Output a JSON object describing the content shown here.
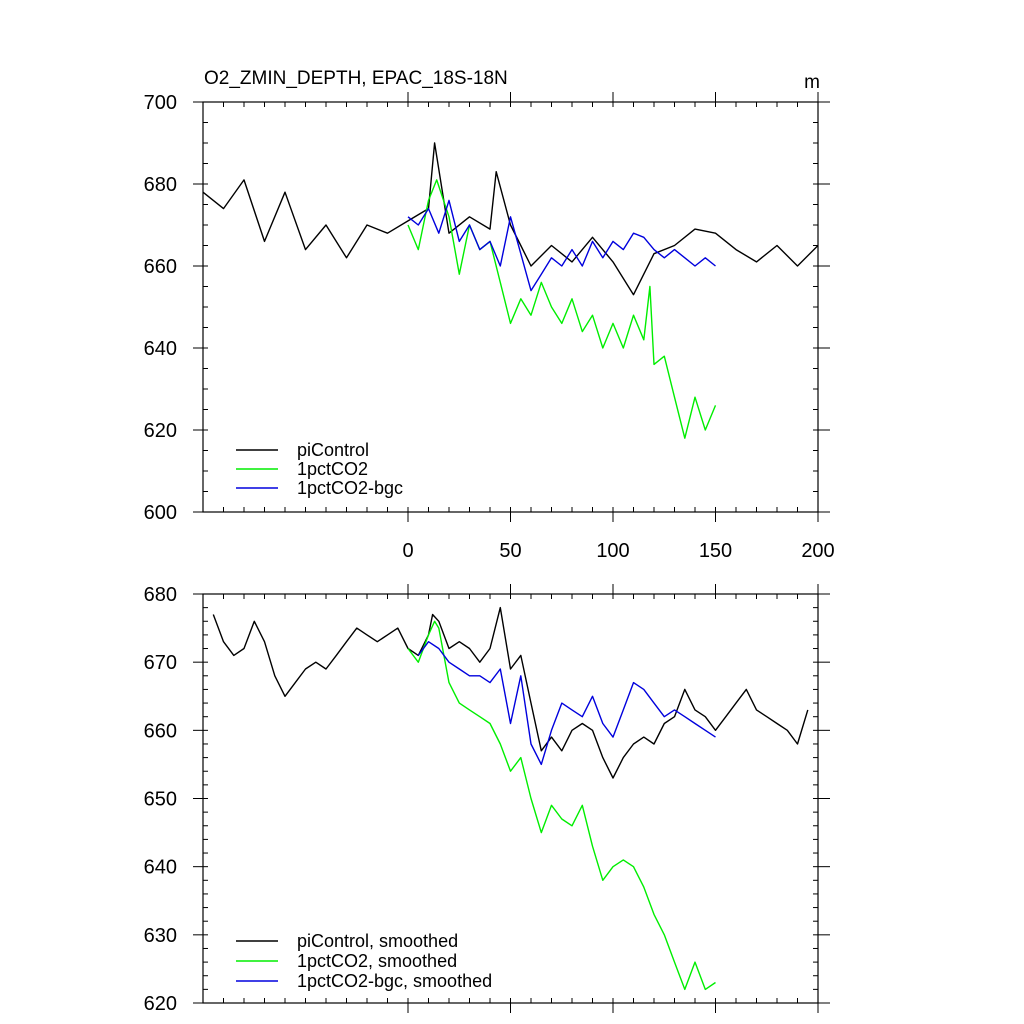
{
  "chart_data": [
    {
      "type": "line",
      "title": "O2_ZMIN_DEPTH, EPAC_18S-18N",
      "unit": "m",
      "xlim": [
        -100,
        200
      ],
      "ylim": [
        600,
        700
      ],
      "xticks": [
        0,
        50,
        100,
        150,
        200
      ],
      "xtick_labels": [
        "0",
        "50",
        "100",
        "150",
        "200"
      ],
      "yticks": [
        600,
        620,
        640,
        660,
        680,
        700
      ],
      "ytick_labels": [
        "600",
        "620",
        "640",
        "660",
        "680",
        "700"
      ],
      "legend_position": "bottom-left",
      "series": [
        {
          "name": "piControl",
          "color": "#000000",
          "x": [
            -100,
            -90,
            -80,
            -70,
            -60,
            -50,
            -40,
            -30,
            -20,
            -10,
            0,
            10,
            13,
            20,
            30,
            40,
            43,
            50,
            55,
            60,
            70,
            80,
            90,
            100,
            110,
            120,
            130,
            140,
            150,
            160,
            170,
            180,
            190,
            200
          ],
          "y": [
            678,
            674,
            681,
            666,
            678,
            664,
            670,
            662,
            670,
            668,
            671,
            674,
            690,
            668,
            672,
            669,
            683,
            670,
            665,
            660,
            665,
            661,
            667,
            661,
            653,
            663,
            665,
            669,
            668,
            664,
            661,
            665,
            660,
            665
          ]
        },
        {
          "name": "1pctCO2",
          "color": "#00ee00",
          "x": [
            0,
            5,
            10,
            14,
            20,
            25,
            30,
            35,
            40,
            45,
            50,
            55,
            60,
            65,
            70,
            75,
            80,
            85,
            90,
            95,
            100,
            105,
            110,
            115,
            118,
            120,
            125,
            130,
            135,
            140,
            145,
            150
          ],
          "y": [
            670,
            664,
            676,
            681,
            672,
            658,
            670,
            664,
            666,
            656,
            646,
            652,
            648,
            656,
            650,
            646,
            652,
            644,
            648,
            640,
            646,
            640,
            648,
            642,
            655,
            636,
            638,
            628,
            618,
            628,
            620,
            626
          ]
        },
        {
          "name": "1pctCO2-bgc",
          "color": "#0000dd",
          "x": [
            0,
            5,
            10,
            15,
            20,
            25,
            30,
            35,
            40,
            45,
            50,
            55,
            60,
            65,
            70,
            75,
            80,
            85,
            90,
            95,
            100,
            105,
            110,
            115,
            120,
            125,
            130,
            135,
            140,
            145,
            150
          ],
          "y": [
            672,
            670,
            674,
            668,
            676,
            666,
            670,
            664,
            666,
            660,
            672,
            663,
            654,
            658,
            662,
            660,
            664,
            660,
            666,
            662,
            666,
            664,
            668,
            667,
            664,
            662,
            664,
            662,
            660,
            662,
            660
          ]
        }
      ]
    },
    {
      "type": "line",
      "title": "",
      "xlim": [
        -100,
        200
      ],
      "ylim": [
        620,
        680
      ],
      "xticks": [
        0,
        50,
        100,
        150,
        200
      ],
      "xtick_labels": [
        "",
        "",
        "",
        "",
        ""
      ],
      "yticks": [
        620,
        630,
        640,
        650,
        660,
        670,
        680
      ],
      "ytick_labels": [
        "620",
        "630",
        "640",
        "650",
        "660",
        "670",
        "680"
      ],
      "legend_position": "bottom-left",
      "series": [
        {
          "name": "piControl, smoothed",
          "color": "#000000",
          "x": [
            -95,
            -90,
            -85,
            -80,
            -75,
            -70,
            -65,
            -60,
            -55,
            -50,
            -45,
            -40,
            -35,
            -30,
            -25,
            -20,
            -15,
            -10,
            -5,
            0,
            5,
            10,
            12,
            15,
            20,
            25,
            30,
            35,
            40,
            45,
            50,
            55,
            60,
            65,
            70,
            75,
            80,
            85,
            90,
            95,
            100,
            105,
            110,
            115,
            120,
            125,
            130,
            135,
            140,
            145,
            150,
            155,
            160,
            165,
            170,
            175,
            180,
            185,
            190,
            195
          ],
          "y": [
            677,
            673,
            671,
            672,
            676,
            673,
            668,
            665,
            667,
            669,
            670,
            669,
            671,
            673,
            675,
            674,
            673,
            674,
            675,
            672,
            671,
            674,
            677,
            676,
            672,
            673,
            672,
            670,
            672,
            678,
            669,
            671,
            664,
            657,
            659,
            657,
            660,
            661,
            660,
            656,
            653,
            656,
            658,
            659,
            658,
            661,
            662,
            666,
            663,
            662,
            660,
            662,
            664,
            666,
            663,
            662,
            661,
            660,
            658,
            663
          ]
        },
        {
          "name": "1pctCO2, smoothed",
          "color": "#00ee00",
          "x": [
            0,
            5,
            10,
            13,
            15,
            20,
            25,
            30,
            35,
            40,
            45,
            50,
            55,
            60,
            65,
            70,
            75,
            80,
            85,
            90,
            95,
            100,
            105,
            110,
            115,
            120,
            125,
            130,
            135,
            140,
            145,
            150
          ],
          "y": [
            672,
            670,
            674,
            676,
            675,
            667,
            664,
            663,
            662,
            661,
            658,
            654,
            656,
            650,
            645,
            649,
            647,
            646,
            649,
            643,
            638,
            640,
            641,
            640,
            637,
            633,
            630,
            626,
            622,
            626,
            622,
            623
          ]
        },
        {
          "name": "1pctCO2-bgc, smoothed",
          "color": "#0000dd",
          "x": [
            5,
            10,
            15,
            20,
            25,
            30,
            35,
            40,
            45,
            50,
            55,
            60,
            65,
            70,
            75,
            80,
            85,
            90,
            95,
            100,
            105,
            110,
            115,
            120,
            125,
            130,
            135,
            140,
            145,
            150
          ],
          "y": [
            671,
            673,
            672,
            670,
            669,
            668,
            668,
            667,
            669,
            661,
            668,
            658,
            655,
            660,
            664,
            663,
            662,
            665,
            661,
            659,
            663,
            667,
            666,
            664,
            662,
            663,
            662,
            661,
            660,
            659
          ]
        }
      ]
    }
  ]
}
